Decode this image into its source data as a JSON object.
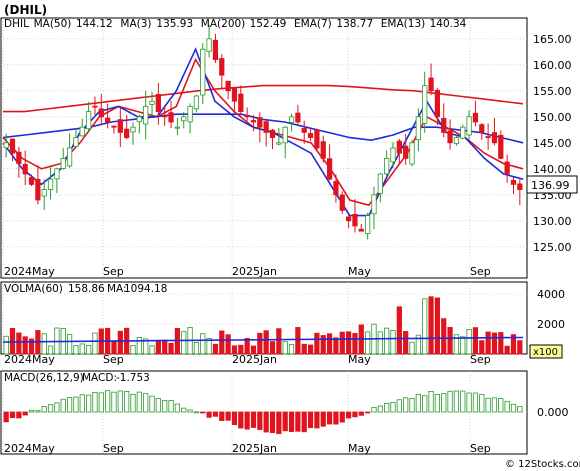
{
  "title": "(DHIL)",
  "legend": [
    {
      "label": "DHIL",
      "value": "",
      "color": "#000000"
    },
    {
      "label": "MA(50)",
      "value": "144.12",
      "color": "#1f2bd8"
    },
    {
      "label": "MA(3)",
      "value": "135.93",
      "color": "#1f2bd8"
    },
    {
      "label": "MA(200)",
      "value": "152.49",
      "color": "#e0141e"
    },
    {
      "label": "EMA(7)",
      "value": "138.77",
      "color": "#1f2bd8"
    },
    {
      "label": "EMA(13)",
      "value": "140.34",
      "color": "#e0141e"
    }
  ],
  "last_price": "136.99",
  "watermark": "© 12Stocks.com",
  "colors": {
    "up": "#2a9a2a",
    "down": "#e0141e",
    "blue": "#1f2bd8",
    "red": "#e0141e",
    "grid": "#bdbdbd"
  },
  "chart_data": [
    {
      "type": "candlestick",
      "name": "price",
      "yticks": [
        125,
        130,
        135,
        140,
        145,
        150,
        155,
        160,
        165
      ],
      "ylim": [
        119,
        169
      ],
      "xlabels": [
        "2024May",
        "Sep",
        "2025Jan",
        "May",
        "Sep"
      ],
      "grid": true,
      "closes": [
        145,
        143,
        141,
        139,
        137,
        134,
        136,
        138,
        140,
        142,
        144,
        146,
        148,
        151,
        152,
        150,
        149,
        148,
        147,
        146,
        148,
        150,
        152,
        153,
        151,
        150,
        149,
        148,
        150,
        152,
        154,
        163,
        165,
        161,
        158,
        155,
        153,
        151,
        150,
        149,
        148,
        147,
        146,
        145,
        148,
        150,
        149,
        147,
        146,
        144,
        142,
        138,
        135,
        132,
        130,
        129,
        128,
        131,
        135,
        139,
        142,
        144,
        143,
        142,
        145,
        150,
        156,
        155,
        150,
        147,
        145,
        146,
        148,
        150,
        149,
        147,
        146,
        145,
        142,
        139,
        137,
        136
      ],
      "series": [
        {
          "name": "MA(200)",
          "values": [
            151,
            151,
            151.5,
            152,
            152.5,
            153,
            153.5,
            154,
            154.5,
            155,
            155.4,
            155.7,
            156,
            156,
            156,
            156,
            155.8,
            155.5,
            155.2,
            155,
            154.5,
            154,
            153.5,
            153,
            152.5
          ]
        },
        {
          "name": "MA(50)",
          "values": [
            146,
            146.5,
            147,
            147.5,
            148,
            149,
            149.5,
            150,
            150.5,
            150.5,
            150.5,
            150.5,
            149.5,
            149,
            148,
            147,
            146,
            145.5,
            146.5,
            148,
            148,
            147.5,
            147,
            146,
            145
          ]
        },
        {
          "name": "EMA(13)",
          "values": [
            146,
            142,
            140,
            141,
            145,
            150,
            152,
            151,
            150,
            152,
            161,
            155,
            151,
            148,
            147,
            146,
            145,
            140,
            134,
            133,
            138,
            143,
            150,
            148,
            146,
            143,
            141,
            140
          ]
        },
        {
          "name": "EMA(7)",
          "values": [
            145,
            140,
            137,
            140,
            147,
            151,
            152,
            150,
            150,
            155,
            163,
            153,
            150,
            148,
            147,
            145,
            143,
            137,
            131,
            131,
            139,
            146,
            153,
            147,
            146,
            142,
            139,
            138
          ]
        }
      ]
    },
    {
      "type": "bar",
      "name": "VOLMA(60)",
      "label": "VOLMA(60)",
      "value": "158.86",
      "ma_label": "MA:",
      "ma_value": "1094.18",
      "yticks": [
        2000,
        4000
      ],
      "ylim": [
        0,
        4800
      ],
      "unit": "x100",
      "xlabels": [
        "2024May",
        "Sep",
        "2025Jan",
        "May",
        "Sep"
      ]
    },
    {
      "type": "bar",
      "name": "MACD(26,12,9)",
      "label": "MACD(26,12,9)",
      "value": "-1.753",
      "yticks": [
        "0.000"
      ],
      "xlabels": [
        "2024May",
        "Sep",
        "2025Jan",
        "May",
        "Sep"
      ]
    }
  ]
}
